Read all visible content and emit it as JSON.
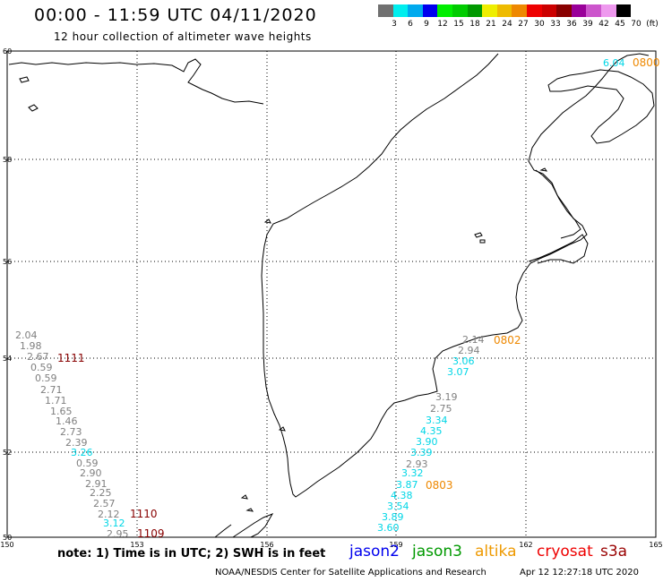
{
  "title": "00:00 - 11:59 UTC 04/11/2020",
  "subtitle": "12 hour collection of altimeter wave heights",
  "colorbar": {
    "colors": [
      "#707070",
      "#00eeee",
      "#00aaee",
      "#0000ee",
      "#00ee00",
      "#00cc00",
      "#009900",
      "#eeee00",
      "#eebb00",
      "#ee8800",
      "#ee0000",
      "#cc0000",
      "#880000",
      "#990099",
      "#cc55cc",
      "#ee99ee",
      "#000000"
    ],
    "labels": [
      "3",
      "6",
      "9",
      "12",
      "15",
      "18",
      "21",
      "24",
      "27",
      "30",
      "33",
      "36",
      "39",
      "42",
      "45",
      "70",
      "(ft)"
    ]
  },
  "map": {
    "lat_labels": [
      "60",
      "58",
      "56",
      "54",
      "52",
      "50"
    ],
    "lon_labels": [
      "150",
      "153",
      "156",
      "159",
      "162",
      "165"
    ],
    "swh_points": [
      {
        "text": "2.04",
        "color": "#808080"
      },
      {
        "text": "1.98",
        "color": "#808080"
      },
      {
        "text": "2.67",
        "color": "#808080"
      },
      {
        "text": "0.59",
        "color": "#808080"
      },
      {
        "text": "0.59",
        "color": "#808080"
      },
      {
        "text": "2.71",
        "color": "#808080"
      },
      {
        "text": "1.71",
        "color": "#808080"
      },
      {
        "text": "1.65",
        "color": "#808080"
      },
      {
        "text": "1.46",
        "color": "#808080"
      },
      {
        "text": "2.73",
        "color": "#808080"
      },
      {
        "text": "2.39",
        "color": "#808080"
      },
      {
        "text": "3.26",
        "color": "#00d6e6"
      },
      {
        "text": "0.59",
        "color": "#808080"
      },
      {
        "text": "2.90",
        "color": "#808080"
      },
      {
        "text": "2.91",
        "color": "#808080"
      },
      {
        "text": "2.25",
        "color": "#808080"
      },
      {
        "text": "2.57",
        "color": "#808080"
      },
      {
        "text": "2.12",
        "color": "#808080"
      },
      {
        "text": "3.12",
        "color": "#00d6e6"
      },
      {
        "text": "2.95",
        "color": "#808080"
      },
      {
        "text": "2.14",
        "color": "#808080"
      },
      {
        "text": "2.94",
        "color": "#808080"
      },
      {
        "text": "3.06",
        "color": "#00d6e6"
      },
      {
        "text": "3.07",
        "color": "#00d6e6"
      },
      {
        "text": "3.19",
        "color": "#808080"
      },
      {
        "text": "2.75",
        "color": "#808080"
      },
      {
        "text": "3.34",
        "color": "#00d6e6"
      },
      {
        "text": "4.35",
        "color": "#00d6e6"
      },
      {
        "text": "3.90",
        "color": "#00d6e6"
      },
      {
        "text": "3.39",
        "color": "#00d6e6"
      },
      {
        "text": "2.93",
        "color": "#808080"
      },
      {
        "text": "3.32",
        "color": "#00d6e6"
      },
      {
        "text": "3.87",
        "color": "#00d6e6"
      },
      {
        "text": "4.38",
        "color": "#00d6e6"
      },
      {
        "text": "3.54",
        "color": "#00d6e6"
      },
      {
        "text": "3.89",
        "color": "#00d6e6"
      },
      {
        "text": "3.60",
        "color": "#00d6e6"
      },
      {
        "text": "6.04",
        "color": "#00d6e6"
      }
    ],
    "time_labels": [
      {
        "text": "1111",
        "color": "#880000"
      },
      {
        "text": "1110",
        "color": "#880000"
      },
      {
        "text": "1109",
        "color": "#880000"
      },
      {
        "text": "0802",
        "color": "#ee8800"
      },
      {
        "text": "0803",
        "color": "#ee8800"
      },
      {
        "text": "0800",
        "color": "#ee8800"
      }
    ]
  },
  "footer": {
    "note": "note: 1) Time is in UTC; 2) SWH is in feet",
    "missions": [
      {
        "name": "jason2",
        "color": "#0000ee"
      },
      {
        "name": "jason3",
        "color": "#009900"
      },
      {
        "name": "altika",
        "color": "#ee9900"
      },
      {
        "name": "cryosat",
        "color": "#ee0000"
      },
      {
        "name": "s3a",
        "color": "#990000"
      }
    ],
    "credit": "NOAA/NESDIS Center for Satellite Applications and Research",
    "timestamp": "Apr 12 12:27:18 UTC 2020"
  }
}
